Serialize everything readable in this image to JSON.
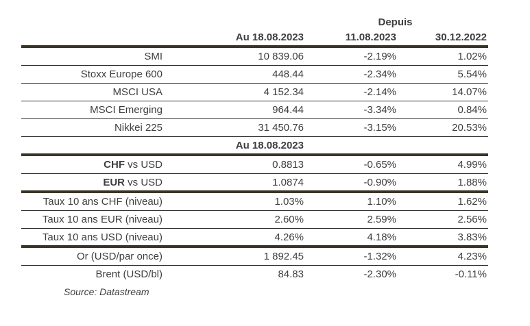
{
  "header": {
    "depuis_label": "Depuis",
    "columns": [
      "Au 18.08.2023",
      "11.08.2023",
      "30.12.2022"
    ]
  },
  "sub_header": {
    "label": "Au 18.08.2023"
  },
  "rows": [
    {
      "label": "SMI",
      "values": [
        "10 839.06",
        "-2.19%",
        "1.02%"
      ]
    },
    {
      "label": "Stoxx Europe 600",
      "values": [
        "448.44",
        "-2.34%",
        "5.54%"
      ]
    },
    {
      "label": "MSCI USA",
      "values": [
        "4 152.34",
        "-2.14%",
        "14.07%"
      ]
    },
    {
      "label": "MSCI Emerging",
      "values": [
        "964.44",
        "-3.34%",
        "0.84%"
      ]
    },
    {
      "label": "Nikkei 225",
      "values": [
        "31 450.76",
        "-3.15%",
        "20.53%"
      ]
    },
    {
      "label_bold": "CHF",
      "label_rest": " vs USD",
      "values": [
        "0.8813",
        "-0.65%",
        "4.99%"
      ]
    },
    {
      "label_bold": "EUR",
      "label_rest": " vs USD",
      "values": [
        "1.0874",
        "-0.90%",
        "1.88%"
      ]
    },
    {
      "label": "Taux 10 ans CHF (niveau)",
      "values": [
        "1.03%",
        "1.10%",
        "1.62%"
      ]
    },
    {
      "label": "Taux 10 ans EUR (niveau)",
      "values": [
        "2.60%",
        "2.59%",
        "2.56%"
      ]
    },
    {
      "label": "Taux 10 ans USD (niveau)",
      "values": [
        "4.26%",
        "4.18%",
        "3.83%"
      ]
    },
    {
      "label": "Or (USD/par once)",
      "values": [
        "1 892.45",
        "-1.32%",
        "4.23%"
      ]
    },
    {
      "label": "Brent (USD/bl)",
      "values": [
        "84.83",
        "-2.30%",
        "-0.11%"
      ]
    }
  ],
  "footer": {
    "source": "Source: Datastream"
  },
  "colors": {
    "text": "#3e3e3e",
    "thick_rule": "#3a3327",
    "thin_rule": "#2a2a2a",
    "background": "#ffffff"
  }
}
